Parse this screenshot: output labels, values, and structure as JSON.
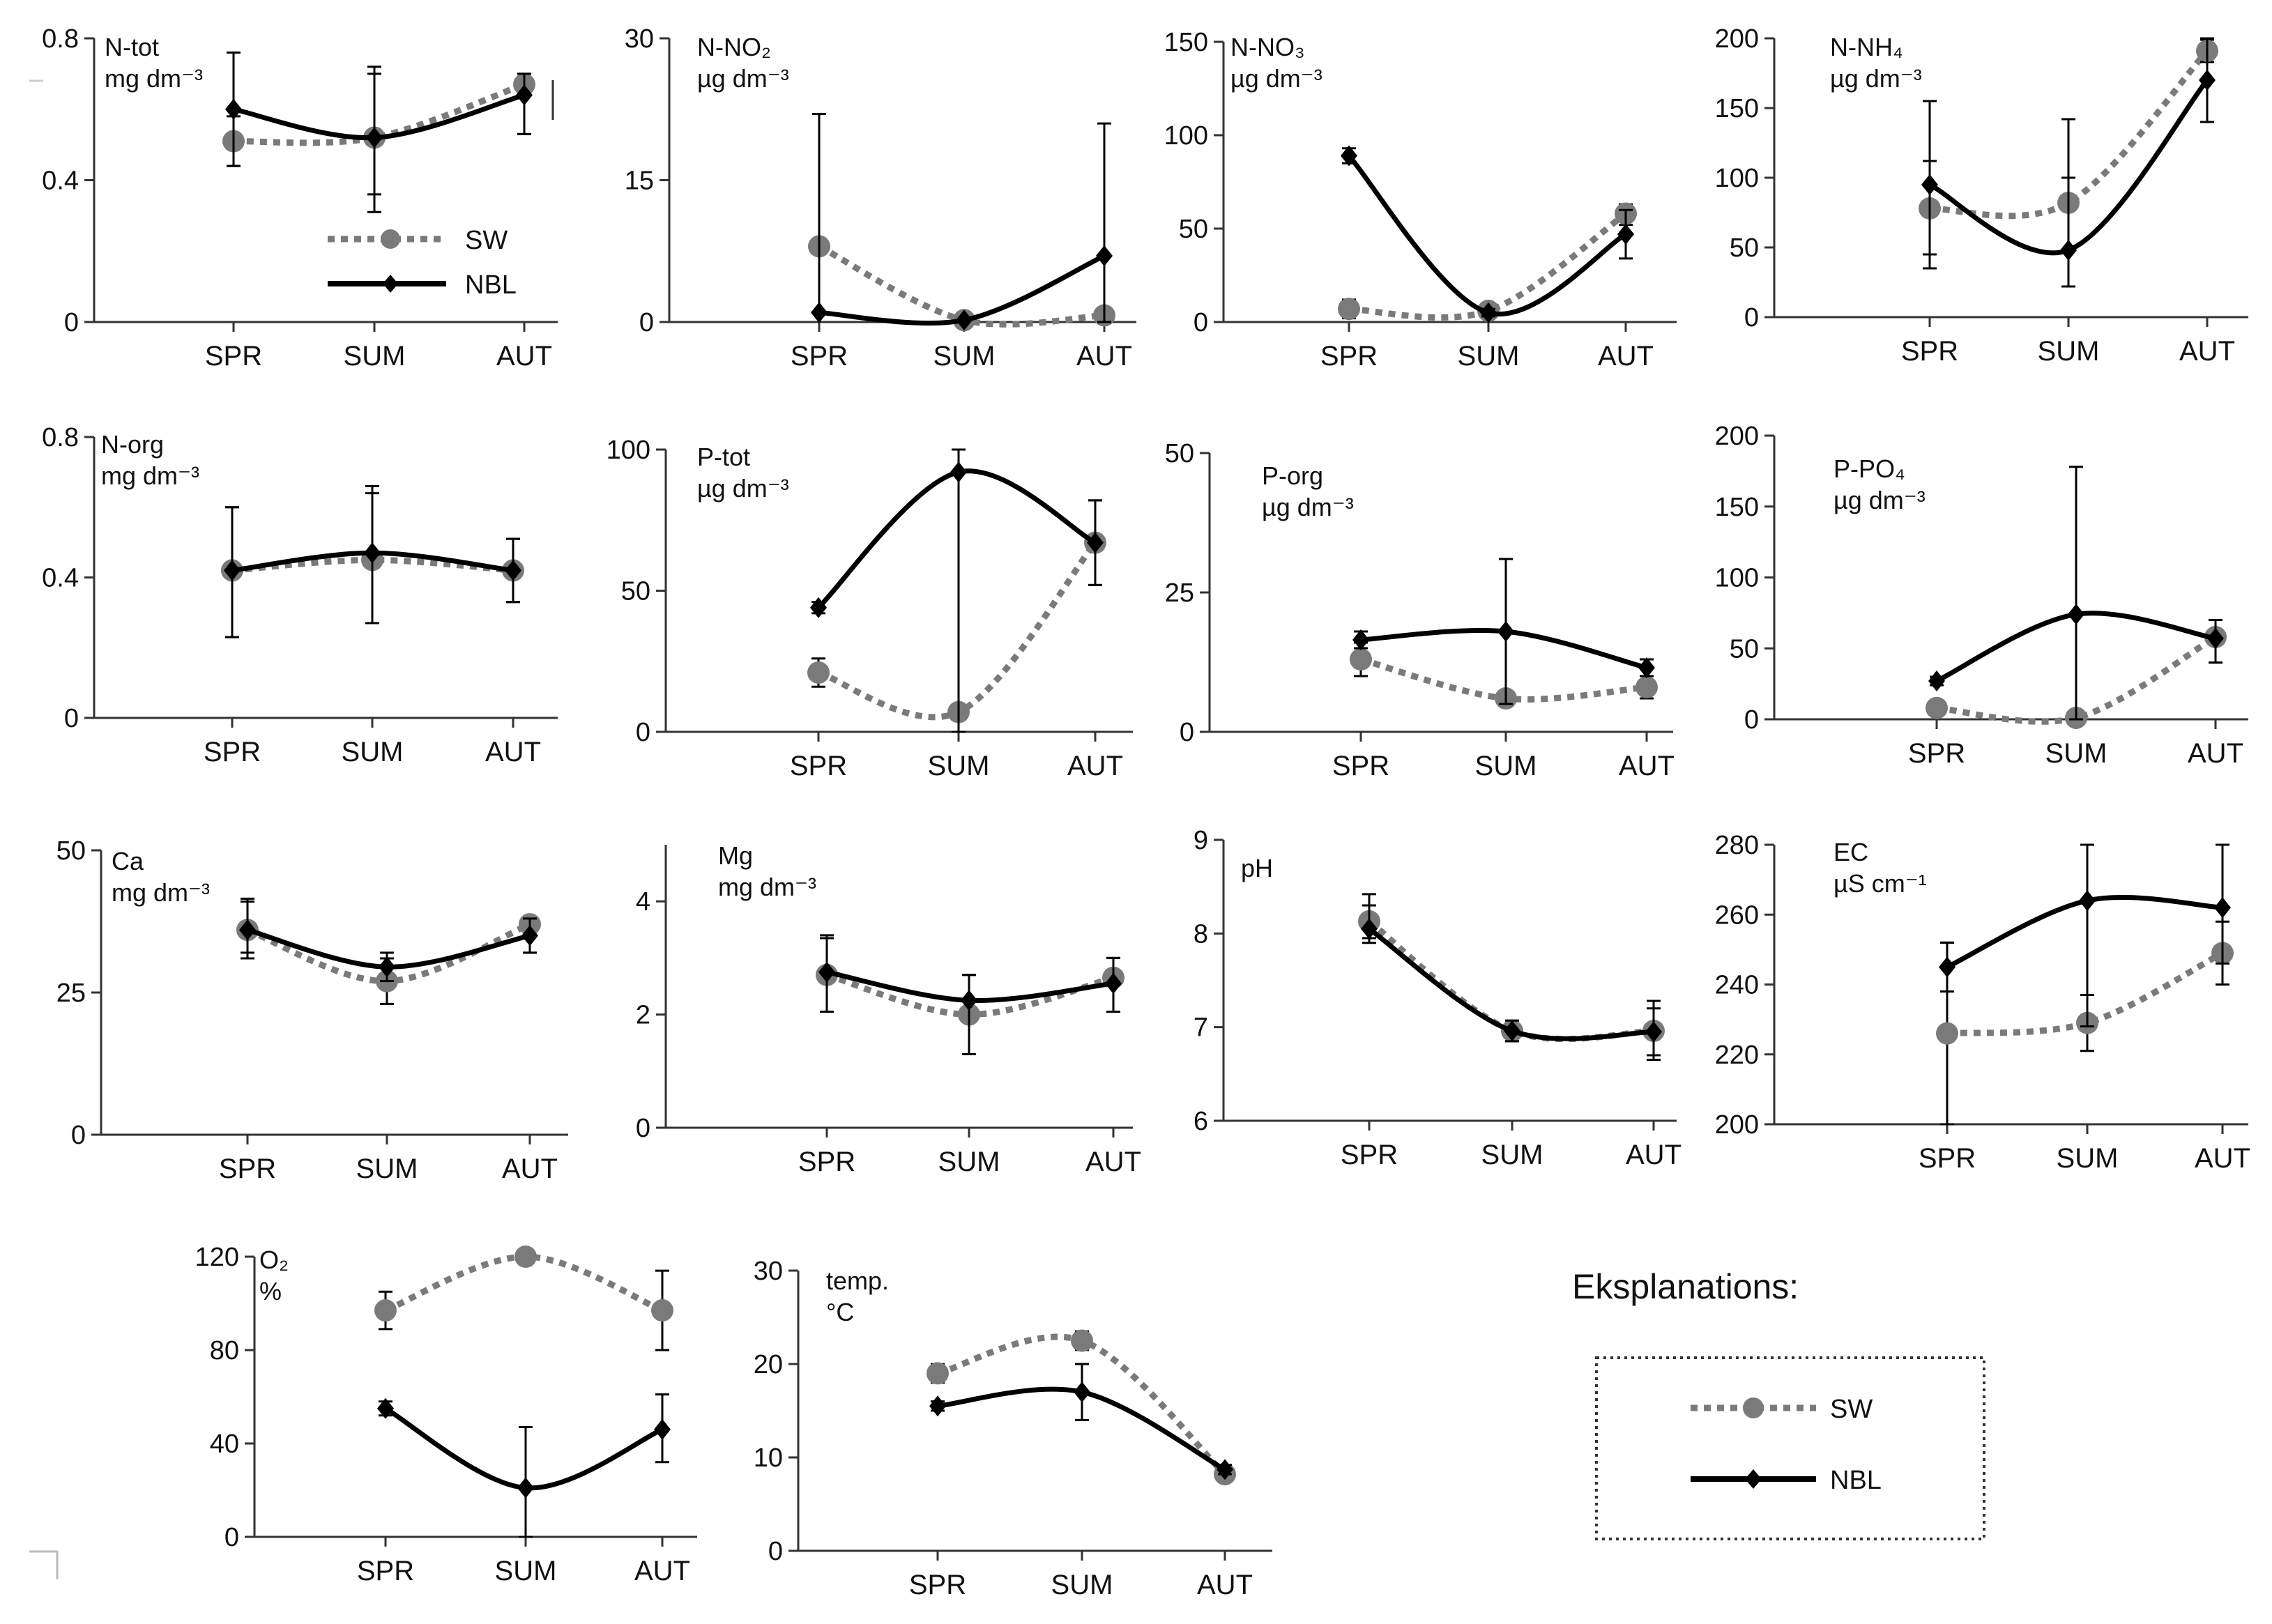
{
  "figure_title": "",
  "explanation": {
    "title": "Eksplanations:"
  },
  "chart_data": [
    {
      "id": "ntot",
      "type": "line",
      "label": [
        "N-tot",
        "mg dm⁻³"
      ],
      "categories": [
        "SPR",
        "SUM",
        "AUT"
      ],
      "yticks": [
        "0",
        "0.4",
        "0.8"
      ],
      "ylim": [
        0,
        0.8
      ],
      "inline_legend": {
        "SW": "SW",
        "NBL": "NBL"
      },
      "series": [
        {
          "name": "SW",
          "values": [
            0.51,
            0.52,
            0.67
          ],
          "err_low": [
            0.44,
            0.36,
            0.53
          ],
          "err_high": [
            0.58,
            0.7,
            0.7
          ]
        },
        {
          "name": "NBL",
          "values": [
            0.6,
            0.52,
            0.64
          ],
          "err_low": [
            0.44,
            0.31,
            0.53
          ],
          "err_high": [
            0.76,
            0.72,
            0.7
          ]
        }
      ]
    },
    {
      "id": "nno2",
      "type": "line",
      "label": [
        "N-NO₂",
        "µg dm⁻³"
      ],
      "categories": [
        "SPR",
        "SUM",
        "AUT"
      ],
      "yticks": [
        "0",
        "15",
        "30"
      ],
      "ylim": [
        0,
        30
      ],
      "series": [
        {
          "name": "SW",
          "values": [
            8,
            0.2,
            0.7
          ],
          "err_low": [
            8,
            0.2,
            0.7
          ],
          "err_high": [
            8,
            0.2,
            0.7
          ]
        },
        {
          "name": "NBL",
          "values": [
            1,
            0.2,
            7
          ],
          "err_low": [
            1,
            0.2,
            0
          ],
          "err_high": [
            22,
            0.2,
            21
          ]
        }
      ]
    },
    {
      "id": "nno3",
      "type": "line",
      "label": [
        "N-NO₃",
        "µg dm⁻³"
      ],
      "categories": [
        "SPR",
        "SUM",
        "AUT"
      ],
      "yticks": [
        "0",
        "50",
        "100",
        "150"
      ],
      "ylim": [
        0,
        150
      ],
      "series": [
        {
          "name": "SW",
          "values": [
            7,
            6,
            58
          ],
          "err_low": [
            2,
            2,
            52
          ],
          "err_high": [
            12,
            10,
            63
          ]
        },
        {
          "name": "NBL",
          "values": [
            89,
            5,
            47
          ],
          "err_low": [
            85,
            3,
            34
          ],
          "err_high": [
            93,
            7,
            60
          ]
        }
      ]
    },
    {
      "id": "nnh4",
      "type": "line",
      "label": [
        "N-NH₄",
        "µg dm⁻³"
      ],
      "categories": [
        "SPR",
        "SUM",
        "AUT"
      ],
      "yticks": [
        "0",
        "50",
        "100",
        "150",
        "200"
      ],
      "ylim": [
        0,
        200
      ],
      "series": [
        {
          "name": "SW",
          "values": [
            78,
            82,
            191
          ],
          "err_low": [
            45,
            22,
            183
          ],
          "err_high": [
            112,
            142,
            199
          ]
        },
        {
          "name": "NBL",
          "values": [
            95,
            48,
            170
          ],
          "err_low": [
            35,
            22,
            140
          ],
          "err_high": [
            155,
            100,
            200
          ]
        }
      ]
    },
    {
      "id": "norg",
      "type": "line",
      "label": [
        "N-org",
        "mg dm⁻³"
      ],
      "categories": [
        "SPR",
        "SUM",
        "AUT"
      ],
      "yticks": [
        "0",
        "0.4",
        "0.8"
      ],
      "ylim": [
        0,
        0.8
      ],
      "series": [
        {
          "name": "SW",
          "values": [
            0.42,
            0.45,
            0.42
          ],
          "err_low": [
            0.23,
            0.27,
            0.33
          ],
          "err_high": [
            0.6,
            0.64,
            0.51
          ]
        },
        {
          "name": "NBL",
          "values": [
            0.42,
            0.47,
            0.42
          ],
          "err_low": [
            0.23,
            0.27,
            0.33
          ],
          "err_high": [
            0.6,
            0.66,
            0.51
          ]
        }
      ]
    },
    {
      "id": "ptot",
      "type": "line",
      "label": [
        "P-tot",
        "µg dm⁻³"
      ],
      "categories": [
        "SPR",
        "SUM",
        "AUT"
      ],
      "yticks": [
        "0",
        "50",
        "100"
      ],
      "ylim": [
        0,
        100
      ],
      "series": [
        {
          "name": "SW",
          "values": [
            21,
            7,
            67
          ],
          "err_low": [
            16,
            5,
            52
          ],
          "err_high": [
            26,
            9,
            82
          ]
        },
        {
          "name": "NBL",
          "values": [
            44,
            92,
            67
          ],
          "err_low": [
            42,
            0,
            52
          ],
          "err_high": [
            46,
            100,
            82
          ]
        }
      ]
    },
    {
      "id": "porg",
      "type": "line",
      "label": [
        "P-org",
        "µg dm⁻³"
      ],
      "categories": [
        "SPR",
        "SUM",
        "AUT"
      ],
      "yticks": [
        "0",
        "25",
        "50"
      ],
      "ylim": [
        0,
        50
      ],
      "series": [
        {
          "name": "SW",
          "values": [
            13,
            6,
            8
          ],
          "err_low": [
            10,
            5,
            6
          ],
          "err_high": [
            16,
            7,
            10
          ]
        },
        {
          "name": "NBL",
          "values": [
            16.5,
            18,
            11.5
          ],
          "err_low": [
            15,
            5,
            10
          ],
          "err_high": [
            18,
            31,
            13
          ]
        }
      ]
    },
    {
      "id": "ppo4",
      "type": "line",
      "label": [
        "P-PO₄",
        "µg dm⁻³"
      ],
      "categories": [
        "SPR",
        "SUM",
        "AUT"
      ],
      "yticks": [
        "0",
        "50",
        "100",
        "150",
        "200"
      ],
      "ylim": [
        0,
        200
      ],
      "series": [
        {
          "name": "SW",
          "values": [
            8,
            1,
            58
          ],
          "err_low": [
            4,
            1,
            40
          ],
          "err_high": [
            12,
            1,
            70
          ]
        },
        {
          "name": "NBL",
          "values": [
            27,
            74,
            57
          ],
          "err_low": [
            24,
            0,
            40
          ],
          "err_high": [
            30,
            178,
            70
          ]
        }
      ]
    },
    {
      "id": "ca",
      "type": "line",
      "label": [
        "Ca",
        "mg dm⁻³"
      ],
      "categories": [
        "SPR",
        "SUM",
        "AUT"
      ],
      "yticks": [
        "0",
        "25",
        "50"
      ],
      "ylim": [
        0,
        50
      ],
      "series": [
        {
          "name": "SW",
          "values": [
            36,
            27,
            37
          ],
          "err_low": [
            31,
            23,
            32
          ],
          "err_high": [
            41,
            31,
            38
          ]
        },
        {
          "name": "NBL",
          "values": [
            36,
            29.5,
            35
          ],
          "err_low": [
            32,
            27,
            32
          ],
          "err_high": [
            41.5,
            32,
            38
          ]
        }
      ]
    },
    {
      "id": "mg",
      "type": "line",
      "label": [
        "Mg",
        "mg dm⁻³"
      ],
      "categories": [
        "SPR",
        "SUM",
        "AUT"
      ],
      "yticks": [
        "0",
        "2",
        "4"
      ],
      "ylim": [
        0,
        5
      ],
      "series": [
        {
          "name": "SW",
          "values": [
            2.7,
            2.0,
            2.65
          ],
          "err_low": [
            2.05,
            1.3,
            2.05
          ],
          "err_high": [
            3.35,
            2.7,
            3.0
          ]
        },
        {
          "name": "NBL",
          "values": [
            2.75,
            2.25,
            2.55
          ],
          "err_low": [
            2.05,
            1.3,
            2.05
          ],
          "err_high": [
            3.4,
            2.7,
            3.0
          ]
        }
      ]
    },
    {
      "id": "ph",
      "type": "line",
      "label": [
        "pH"
      ],
      "categories": [
        "SPR",
        "SUM",
        "AUT"
      ],
      "yticks": [
        "6",
        "7",
        "8",
        "9"
      ],
      "ylim": [
        6,
        9
      ],
      "series": [
        {
          "name": "SW",
          "values": [
            8.13,
            6.96,
            6.96
          ],
          "err_low": [
            7.95,
            6.85,
            6.65
          ],
          "err_high": [
            8.3,
            7.07,
            7.28
          ]
        },
        {
          "name": "NBL",
          "values": [
            8.05,
            6.96,
            6.95
          ],
          "err_low": [
            7.9,
            6.85,
            6.7
          ],
          "err_high": [
            8.42,
            7.07,
            7.2
          ]
        }
      ]
    },
    {
      "id": "ec",
      "type": "line",
      "label": [
        "EC",
        "µS cm⁻¹"
      ],
      "categories": [
        "SPR",
        "SUM",
        "AUT"
      ],
      "yticks": [
        "200",
        "220",
        "240",
        "260",
        "280"
      ],
      "ylim": [
        200,
        280
      ],
      "series": [
        {
          "name": "SW",
          "values": [
            226,
            229,
            249
          ],
          "err_low": [
            200,
            221,
            240
          ],
          "err_high": [
            252,
            237,
            258
          ]
        },
        {
          "name": "NBL",
          "values": [
            245,
            264,
            262
          ],
          "err_low": [
            238,
            228,
            246
          ],
          "err_high": [
            252,
            280,
            280
          ]
        }
      ]
    },
    {
      "id": "o2",
      "type": "line",
      "label": [
        "O₂",
        "%"
      ],
      "categories": [
        "SPR",
        "SUM",
        "AUT"
      ],
      "yticks": [
        "0",
        "40",
        "80",
        "120"
      ],
      "ylim": [
        0,
        120
      ],
      "series": [
        {
          "name": "SW",
          "values": [
            97,
            120,
            97
          ],
          "err_low": [
            89,
            118,
            80
          ],
          "err_high": [
            105,
            122,
            114
          ]
        },
        {
          "name": "NBL",
          "values": [
            55,
            21,
            46
          ],
          "err_low": [
            52,
            0,
            32
          ],
          "err_high": [
            58,
            47,
            61
          ]
        }
      ]
    },
    {
      "id": "temp",
      "type": "line",
      "label": [
        "temp.",
        "°C"
      ],
      "categories": [
        "SPR",
        "SUM",
        "AUT"
      ],
      "yticks": [
        "0",
        "10",
        "20",
        "30"
      ],
      "ylim": [
        0,
        30
      ],
      "series": [
        {
          "name": "SW",
          "values": [
            19,
            22.5,
            8.2
          ],
          "err_low": [
            18,
            21.5,
            7.8
          ],
          "err_high": [
            20,
            23.5,
            8.6
          ]
        },
        {
          "name": "NBL",
          "values": [
            15.5,
            17,
            8.7
          ],
          "err_low": [
            15,
            14,
            8.2
          ],
          "err_high": [
            16,
            20,
            9.2
          ]
        }
      ]
    }
  ],
  "legend": {
    "items": [
      {
        "name": "SW",
        "label": "SW"
      },
      {
        "name": "NBL",
        "label": "NBL"
      }
    ]
  },
  "colors": {
    "SW": "#7a7a7a",
    "NBL": "#000000",
    "axis": "#333333",
    "error_bar": "#000000"
  }
}
